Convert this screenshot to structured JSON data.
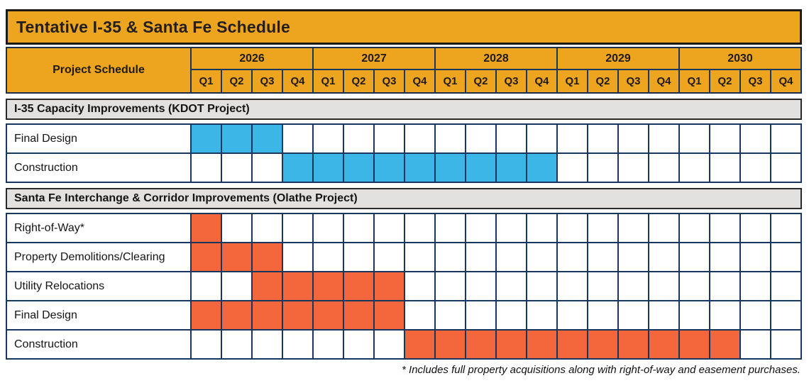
{
  "title": "Tentative I-35 & Santa Fe Schedule",
  "header": {
    "label": "Project Schedule",
    "years": [
      "2026",
      "2027",
      "2028",
      "2029",
      "2030"
    ],
    "quarter_labels": [
      "Q1",
      "Q2",
      "Q3",
      "Q4"
    ]
  },
  "footnote": "* Includes full property acquisitions along with right-of-way and easement purchases.",
  "colors": {
    "gold": "#EDA41F",
    "kdot_blue": "#3CB6E7",
    "olathe_orange": "#F4673C",
    "section_gray": "#E3E1E0",
    "grid_navy": "#17375E"
  },
  "chart_data": {
    "type": "table",
    "title": "Tentative I-35 & Santa Fe Schedule",
    "timeline": {
      "start_year": 2026,
      "years": [
        2026,
        2027,
        2028,
        2029,
        2030
      ],
      "quarters_per_year": [
        "Q1",
        "Q2",
        "Q3",
        "Q4"
      ]
    },
    "sections": [
      {
        "name": "I-35 Capacity Improvements (KDOT Project)",
        "color": "#3CB6E7",
        "rows": [
          {
            "task": "Final Design",
            "start": "2026 Q1",
            "end": "2026 Q3"
          },
          {
            "task": "Construction",
            "start": "2026 Q4",
            "end": "2028 Q4"
          }
        ]
      },
      {
        "name": "Santa Fe Interchange & Corridor Improvements (Olathe Project)",
        "color": "#F4673C",
        "rows": [
          {
            "task": "Right-of-Way*",
            "start": "2026 Q1",
            "end": "2026 Q1"
          },
          {
            "task": "Property Demolitions/Clearing",
            "start": "2026 Q1",
            "end": "2026 Q3"
          },
          {
            "task": "Utility Relocations",
            "start": "2026 Q3",
            "end": "2027 Q3"
          },
          {
            "task": "Final Design",
            "start": "2026 Q1",
            "end": "2027 Q3"
          },
          {
            "task": "Construction",
            "start": "2027 Q4",
            "end": "2030 Q2"
          }
        ]
      }
    ],
    "footnote": "* Includes full property acquisitions along with right-of-way and easement purchases."
  }
}
